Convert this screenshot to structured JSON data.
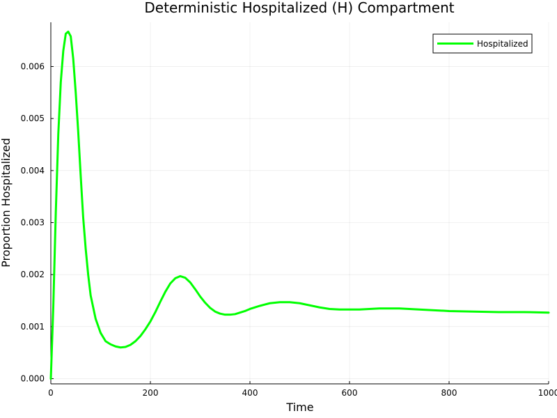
{
  "chart_data": {
    "type": "line",
    "title": "Deterministic Hospitalized (H) Compartment",
    "xlabel": "Time",
    "ylabel": "Proportion Hospitalized",
    "xlim": [
      0,
      1000
    ],
    "ylim": [
      -0.0001,
      0.00685
    ],
    "xticks": [
      0,
      200,
      400,
      600,
      800,
      1000
    ],
    "xtick_labels": [
      "0",
      "200",
      "400",
      "600",
      "800",
      "1000"
    ],
    "yticks": [
      0,
      0.001,
      0.002,
      0.003,
      0.004,
      0.005,
      0.006
    ],
    "ytick_labels": [
      "0.000",
      "0.001",
      "0.002",
      "0.003",
      "0.004",
      "0.005",
      "0.006"
    ],
    "grid": true,
    "legend_position": "top-right",
    "series": [
      {
        "name": "Hospitalized",
        "color": "#00ff00",
        "x": [
          0,
          5,
          10,
          15,
          20,
          25,
          30,
          35,
          40,
          45,
          50,
          55,
          60,
          65,
          70,
          75,
          80,
          90,
          100,
          110,
          120,
          130,
          140,
          150,
          160,
          170,
          180,
          190,
          200,
          210,
          220,
          230,
          240,
          250,
          260,
          270,
          280,
          290,
          300,
          310,
          320,
          330,
          340,
          350,
          360,
          370,
          380,
          390,
          400,
          420,
          440,
          460,
          480,
          500,
          520,
          540,
          560,
          580,
          600,
          620,
          640,
          660,
          680,
          700,
          720,
          740,
          760,
          780,
          800,
          850,
          900,
          950,
          1000
        ],
        "y": [
          0,
          0.0014,
          0.0032,
          0.0047,
          0.0057,
          0.0063,
          0.00663,
          0.00667,
          0.00658,
          0.00615,
          0.0055,
          0.00475,
          0.0039,
          0.0031,
          0.0025,
          0.002,
          0.0016,
          0.00115,
          0.00088,
          0.00072,
          0.00066,
          0.00062,
          0.0006,
          0.00061,
          0.00065,
          0.00072,
          0.00082,
          0.00095,
          0.0011,
          0.00128,
          0.00148,
          0.00167,
          0.00183,
          0.00193,
          0.00197,
          0.00194,
          0.00185,
          0.00172,
          0.00158,
          0.00146,
          0.00136,
          0.00129,
          0.00125,
          0.00123,
          0.00123,
          0.00124,
          0.00127,
          0.0013,
          0.00134,
          0.0014,
          0.00145,
          0.00147,
          0.00147,
          0.00145,
          0.00141,
          0.00137,
          0.00134,
          0.00133,
          0.00133,
          0.00133,
          0.00134,
          0.00135,
          0.00135,
          0.00135,
          0.00134,
          0.00133,
          0.00132,
          0.00131,
          0.0013,
          0.00129,
          0.00128,
          0.00128,
          0.00127
        ]
      }
    ]
  }
}
